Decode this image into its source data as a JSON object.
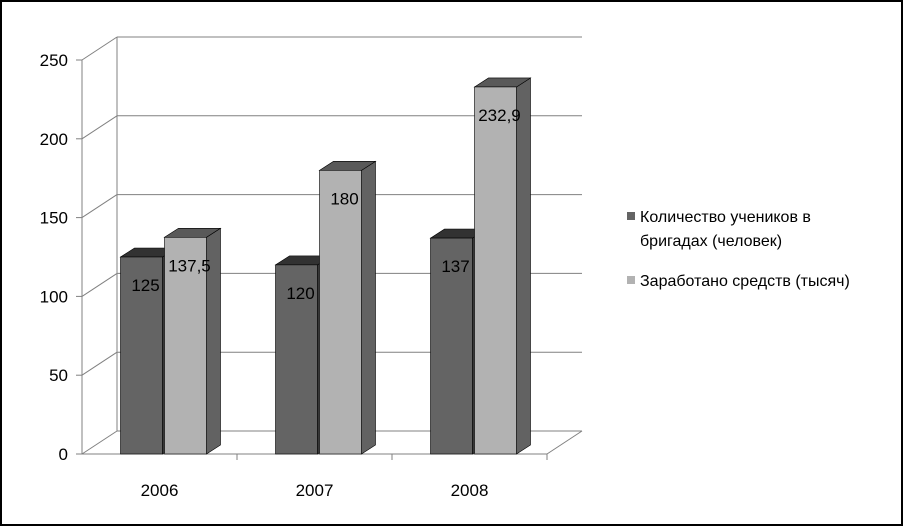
{
  "chart_data": {
    "type": "bar",
    "style": "3d-clustered-column",
    "categories": [
      "2006",
      "2007",
      "2008"
    ],
    "series": [
      {
        "name": "Количество учеников в бригадах (человек)",
        "values": [
          125,
          120,
          137
        ],
        "labels": [
          "125",
          "120",
          "137"
        ],
        "color": "#646464"
      },
      {
        "name": "Заработано средств (тысяч)",
        "values": [
          137.5,
          180,
          232.9
        ],
        "labels": [
          "137,5",
          "180",
          "232,9"
        ],
        "color": "#b2b2b2"
      }
    ],
    "title": "",
    "xlabel": "",
    "ylabel": "",
    "ylim": [
      0,
      250
    ],
    "yticks": [
      "0",
      "50",
      "100",
      "150",
      "200",
      "250"
    ],
    "grid": true,
    "legend_position": "right"
  }
}
